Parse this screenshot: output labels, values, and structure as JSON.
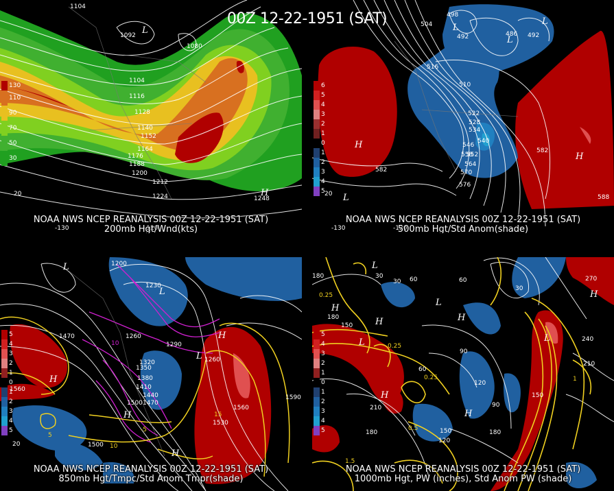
{
  "title": "00Z 12-22-1951 (SAT)",
  "panels": [
    {
      "id": "p200",
      "caption1": "NOAA NWS NCEP REANALYSIS 00Z 12-22-1951 (SAT)",
      "caption2": "200mb Hgt/Wnd(kts)",
      "legend": [
        {
          "label": "130",
          "color": "#b00000"
        },
        {
          "label": "110",
          "color": "#d87020"
        },
        {
          "label": "90",
          "color": "#e8c020"
        },
        {
          "label": "70",
          "color": "#80d020"
        },
        {
          "label": "50",
          "color": "#40b030"
        },
        {
          "label": "30",
          "color": "#20a020"
        }
      ],
      "labels": [
        "1104",
        "1092",
        "1080",
        "1104",
        "1116",
        "1128",
        "1140",
        "1152",
        "1164",
        "1176",
        "1188",
        "1200",
        "1212",
        "1224",
        "1248",
        "20",
        "-120",
        "-130"
      ],
      "highs_lows": [
        "L",
        "H"
      ]
    },
    {
      "id": "p500",
      "caption1": "NOAA NWS NCEP REANALYSIS 00Z 12-22-1951 (SAT)",
      "caption2": "500mb Hgt/Std Anom(shade)",
      "legend": [
        {
          "label": "6",
          "color": "#b00000"
        },
        {
          "label": "5",
          "color": "#d02020"
        },
        {
          "label": "4",
          "color": "#e05050"
        },
        {
          "label": "3",
          "color": "#e08080"
        },
        {
          "label": "2",
          "color": "#9a3030"
        },
        {
          "label": "1",
          "color": "#702020"
        },
        {
          "label": "0",
          "color": "#000"
        },
        {
          "label": "1",
          "color": "#204070"
        },
        {
          "label": "2",
          "color": "#2060a0"
        },
        {
          "label": "3",
          "color": "#2080c0"
        },
        {
          "label": "4",
          "color": "#20a0d0"
        },
        {
          "label": "5",
          "color": "#8040c0"
        }
      ],
      "labels": [
        "498",
        "504",
        "492",
        "486",
        "486",
        "492",
        "516",
        "510",
        "522",
        "528",
        "534",
        "540",
        "546",
        "552",
        "558",
        "564",
        "570",
        "576",
        "582",
        "582",
        "588",
        "20",
        "-130",
        "-120"
      ],
      "highs_lows": [
        "L",
        "L",
        "L",
        "H",
        "L",
        "H"
      ]
    },
    {
      "id": "p850",
      "caption1": "NOAA NWS NCEP REANALYSIS 00Z 12-22-1951 (SAT)",
      "caption2": "850mb Hgt/Tmpc/Std Anom Tmpr(shade)",
      "legend": [
        {
          "label": "5",
          "color": "#b00000"
        },
        {
          "label": "4",
          "color": "#d02020"
        },
        {
          "label": "3",
          "color": "#e05050"
        },
        {
          "label": "2",
          "color": "#e08080"
        },
        {
          "label": "1",
          "color": "#902020"
        },
        {
          "label": "0",
          "color": "#000"
        },
        {
          "label": "1",
          "color": "#204070"
        },
        {
          "label": "2",
          "color": "#2060a0"
        },
        {
          "label": "3",
          "color": "#2080c0"
        },
        {
          "label": "4",
          "color": "#20a0d0"
        },
        {
          "label": "5",
          "color": "#8040c0"
        }
      ],
      "labels": [
        "1200",
        "1230",
        "1260",
        "1290",
        "1320",
        "1350",
        "1380",
        "1410",
        "1440",
        "1470",
        "1500",
        "1530",
        "1560",
        "1590",
        "1470",
        "1560",
        "1500",
        "1260",
        "10",
        "15",
        "5",
        "20",
        "-10",
        "-5"
      ],
      "highs_lows": [
        "L",
        "H",
        "L",
        "H",
        "H",
        "L",
        "H"
      ]
    },
    {
      "id": "p1000",
      "caption1": "NOAA NWS NCEP REANALYSIS 00Z 12-22-1951 (SAT)",
      "caption2": "1000mb Hgt, PW (inches), Std Anom PW (shade)",
      "legend": [
        {
          "label": "5",
          "color": "#b00000"
        },
        {
          "label": "4",
          "color": "#d02020"
        },
        {
          "label": "3",
          "color": "#e05050"
        },
        {
          "label": "2",
          "color": "#e08080"
        },
        {
          "label": "1",
          "color": "#902020"
        },
        {
          "label": "0",
          "color": "#000"
        },
        {
          "label": "1",
          "color": "#204070"
        },
        {
          "label": "2",
          "color": "#2060a0"
        },
        {
          "label": "3",
          "color": "#2080c0"
        },
        {
          "label": "4",
          "color": "#20a0d0"
        },
        {
          "label": "5",
          "color": "#8040c0"
        }
      ],
      "labels": [
        "180",
        "30",
        "30",
        "60",
        "60",
        "30",
        "270",
        "150",
        "180",
        "120",
        "90",
        "120",
        "150",
        "180",
        "210",
        "240",
        "210",
        "150",
        "0.25",
        "0.25",
        "0.25",
        "0.5",
        "1.5",
        "1",
        "60",
        "90"
      ],
      "highs_lows": [
        "L",
        "H",
        "L",
        "H",
        "L",
        "H",
        "H",
        "H",
        "L",
        "H"
      ]
    }
  ]
}
